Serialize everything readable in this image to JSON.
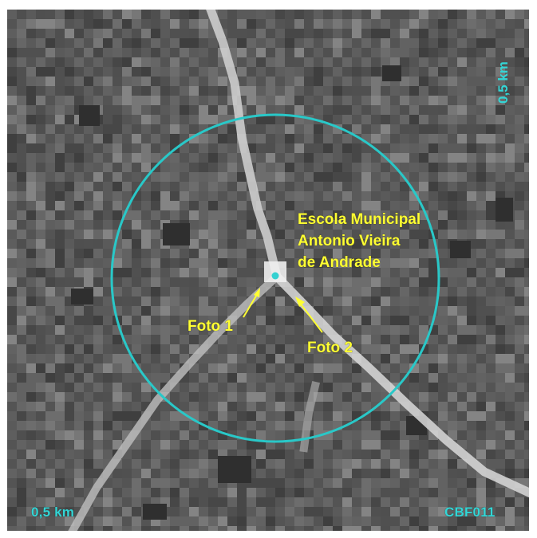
{
  "map": {
    "scale_top_right": "0,5 km",
    "scale_bottom_left": "0,5 km",
    "image_code": "CBF011",
    "school_label": {
      "line1": "Escola Municipal",
      "line2": "Antonio Vieira",
      "line3": "de Andrade"
    },
    "photo_1_label": "Foto 1",
    "photo_2_label": "Foto 2",
    "colors": {
      "circle": "#29c8c8",
      "annotation_text": "#ffff33",
      "scale_text": "#33d6d6",
      "background": "#595959"
    }
  }
}
